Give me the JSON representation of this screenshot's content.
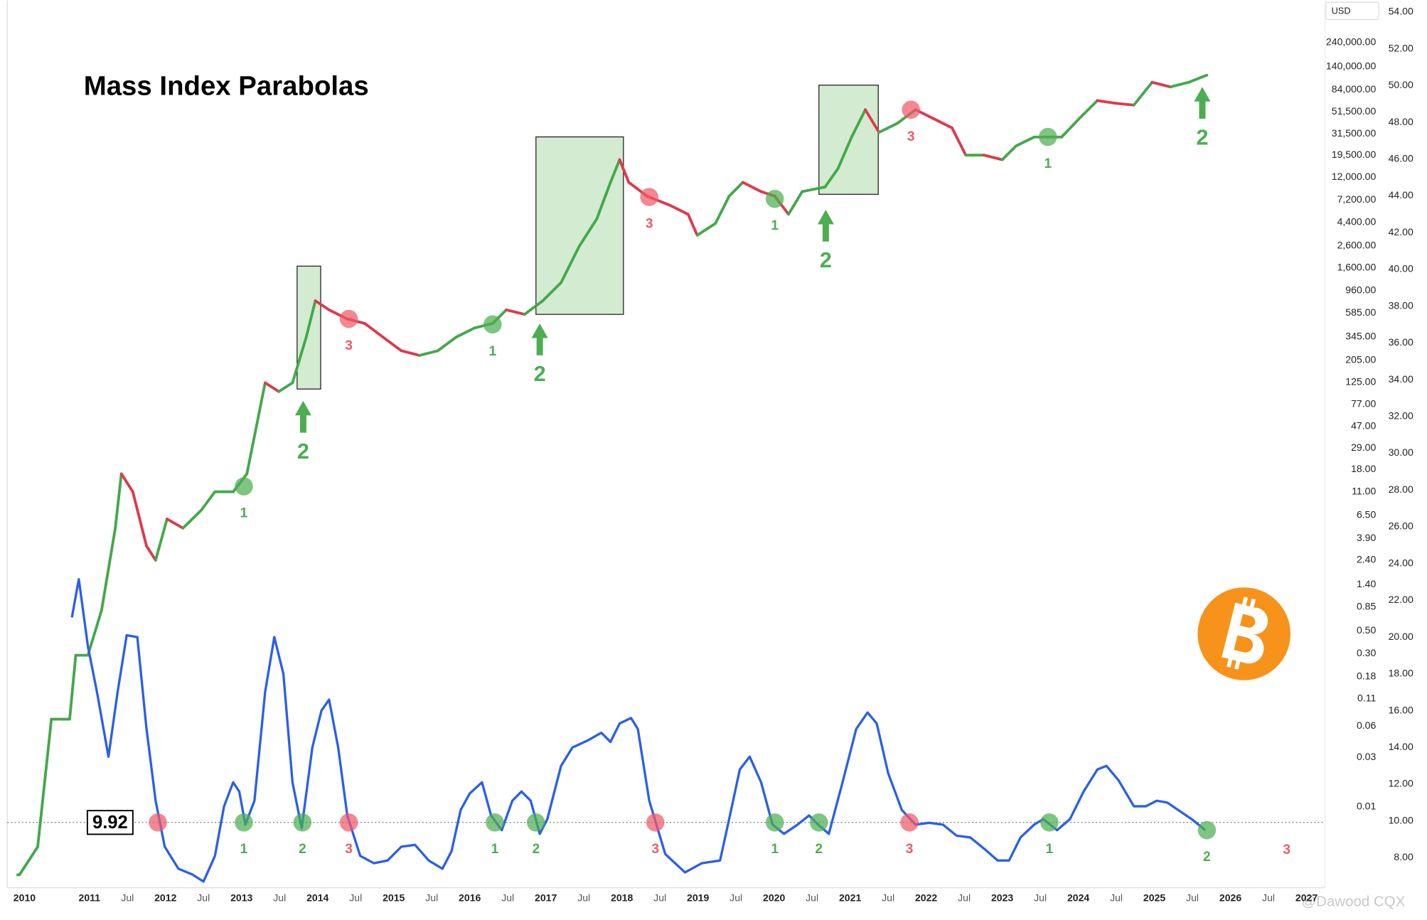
{
  "chart_data": {
    "type": "line",
    "title": "Mass Index Parabolas",
    "y_unit": "USD",
    "watermark": "@Dawood CQX",
    "log_scale": true,
    "xlim": [
      2009.92,
      2027.22
    ],
    "ylim": [
      0.00165,
      611000
    ],
    "y2lim": [
      6.37,
      54.63
    ],
    "xticks": [
      {
        "value": 2010,
        "label": "2010"
      },
      {
        "value": 2011,
        "label": "2011"
      },
      {
        "value": 2011.5,
        "label": "Jul"
      },
      {
        "value": 2012,
        "label": "2012"
      },
      {
        "value": 2012.5,
        "label": "Jul"
      },
      {
        "value": 2013,
        "label": "2013"
      },
      {
        "value": 2013.5,
        "label": "Jul"
      },
      {
        "value": 2014,
        "label": "2014"
      },
      {
        "value": 2014.5,
        "label": "Jul"
      },
      {
        "value": 2015,
        "label": "2015"
      },
      {
        "value": 2015.5,
        "label": "Jul"
      },
      {
        "value": 2016,
        "label": "2016"
      },
      {
        "value": 2016.5,
        "label": "Jul"
      },
      {
        "value": 2017,
        "label": "2017"
      },
      {
        "value": 2017.5,
        "label": "Jul"
      },
      {
        "value": 2018,
        "label": "2018"
      },
      {
        "value": 2018.5,
        "label": "Jul"
      },
      {
        "value": 2019,
        "label": "2019"
      },
      {
        "value": 2019.5,
        "label": "Jul"
      },
      {
        "value": 2020,
        "label": "2020"
      },
      {
        "value": 2020.5,
        "label": "Jul"
      },
      {
        "value": 2021,
        "label": "2021"
      },
      {
        "value": 2021.5,
        "label": "Jul"
      },
      {
        "value": 2022,
        "label": "2022"
      },
      {
        "value": 2022.5,
        "label": "Jul"
      },
      {
        "value": 2023,
        "label": "2023"
      },
      {
        "value": 2023.5,
        "label": "Jul"
      },
      {
        "value": 2024,
        "label": "2024"
      },
      {
        "value": 2024.5,
        "label": "Jul"
      },
      {
        "value": 2025,
        "label": "2025"
      },
      {
        "value": 2025.5,
        "label": "Jul"
      },
      {
        "value": 2026,
        "label": "2026"
      },
      {
        "value": 2026.5,
        "label": "Jul"
      },
      {
        "value": 2027,
        "label": "2027"
      }
    ],
    "yticks": [
      {
        "value": 0.01,
        "label": "0.01"
      },
      {
        "value": 0.03,
        "label": "0.03"
      },
      {
        "value": 0.06,
        "label": "0.06"
      },
      {
        "value": 0.11,
        "label": "0.11"
      },
      {
        "value": 0.18,
        "label": "0.18"
      },
      {
        "value": 0.3,
        "label": "0.30"
      },
      {
        "value": 0.5,
        "label": "0.50"
      },
      {
        "value": 0.85,
        "label": "0.85"
      },
      {
        "value": 1.4,
        "label": "1.40"
      },
      {
        "value": 2.4,
        "label": "2.40"
      },
      {
        "value": 3.9,
        "label": "3.90"
      },
      {
        "value": 6.5,
        "label": "6.50"
      },
      {
        "value": 11,
        "label": "11.00"
      },
      {
        "value": 18,
        "label": "18.00"
      },
      {
        "value": 29,
        "label": "29.00"
      },
      {
        "value": 47,
        "label": "47.00"
      },
      {
        "value": 77,
        "label": "77.00"
      },
      {
        "value": 125,
        "label": "125.00"
      },
      {
        "value": 205,
        "label": "205.00"
      },
      {
        "value": 345,
        "label": "345.00"
      },
      {
        "value": 585,
        "label": "585.00"
      },
      {
        "value": 960,
        "label": "960.00"
      },
      {
        "value": 1600,
        "label": "1,600.00"
      },
      {
        "value": 2600,
        "label": "2,600.00"
      },
      {
        "value": 4400,
        "label": "4,400.00"
      },
      {
        "value": 7200,
        "label": "7,200.00"
      },
      {
        "value": 12000,
        "label": "12,000.00"
      },
      {
        "value": 19500,
        "label": "19,500.00"
      },
      {
        "value": 31500,
        "label": "31,500.00"
      },
      {
        "value": 51500,
        "label": "51,500.00"
      },
      {
        "value": 84000,
        "label": "84,000.00"
      },
      {
        "value": 140000,
        "label": "140,000.00"
      },
      {
        "value": 240000,
        "label": "240,000.00"
      }
    ],
    "y2ticks": [
      {
        "value": 8,
        "label": "8.00"
      },
      {
        "value": 10,
        "label": "10.00"
      },
      {
        "value": 12,
        "label": "12.00"
      },
      {
        "value": 14,
        "label": "14.00"
      },
      {
        "value": 16,
        "label": "16.00"
      },
      {
        "value": 18,
        "label": "18.00"
      },
      {
        "value": 20,
        "label": "20.00"
      },
      {
        "value": 22,
        "label": "22.00"
      },
      {
        "value": 24,
        "label": "24.00"
      },
      {
        "value": 26,
        "label": "26.00"
      },
      {
        "value": 28,
        "label": "28.00"
      },
      {
        "value": 30,
        "label": "30.00"
      },
      {
        "value": 32,
        "label": "32.00"
      },
      {
        "value": 34,
        "label": "34.00"
      },
      {
        "value": 36,
        "label": "36.00"
      },
      {
        "value": 38,
        "label": "38.00"
      },
      {
        "value": 40,
        "label": "40.00"
      },
      {
        "value": 42,
        "label": "42.00"
      },
      {
        "value": 44,
        "label": "44.00"
      },
      {
        "value": 46,
        "label": "46.00"
      },
      {
        "value": 48,
        "label": "48.00"
      },
      {
        "value": 50,
        "label": "50.00"
      },
      {
        "value": 52,
        "label": "52.00"
      },
      {
        "value": 54,
        "label": "54.00"
      }
    ],
    "series": [
      {
        "axis": "y",
        "up_color": "#43a84a",
        "down_color": "#e0384a",
        "x": [
          2010.08,
          2010.32,
          2010.5,
          2010.74,
          2010.82,
          2010.98,
          2011.16,
          2011.34,
          2011.42,
          2011.57,
          2011.75,
          2011.87,
          2012.02,
          2012.23,
          2012.47,
          2012.65,
          2012.89,
          2013.07,
          2013.19,
          2013.31,
          2013.49,
          2013.67,
          2013.85,
          2013.97,
          2014.15,
          2014.39,
          2014.62,
          2014.86,
          2015.1,
          2015.34,
          2015.58,
          2015.82,
          2016.06,
          2016.3,
          2016.48,
          2016.72,
          2016.96,
          2017.2,
          2017.44,
          2017.67,
          2017.85,
          2017.97,
          2018.09,
          2018.33,
          2018.63,
          2018.87,
          2018.99,
          2019.23,
          2019.41,
          2019.59,
          2019.83,
          2020.01,
          2020.19,
          2020.37,
          2020.67,
          2020.84,
          2021.02,
          2021.2,
          2021.38,
          2021.62,
          2021.86,
          2022.1,
          2022.34,
          2022.52,
          2022.76,
          2023.0,
          2023.18,
          2023.42,
          2023.6,
          2023.78,
          2024.01,
          2024.25,
          2024.49,
          2024.73,
          2024.97,
          2025.21,
          2025.45,
          2025.69
        ],
        "values": [
          0.0022,
          0.0041,
          0.07,
          0.07,
          0.29,
          0.29,
          0.79,
          4.9,
          16.4,
          11,
          3.3,
          2.4,
          6.0,
          4.9,
          7.3,
          11,
          11,
          16.4,
          45,
          124,
          102,
          124,
          342,
          769,
          628,
          513,
          464,
          342,
          253,
          228,
          253,
          342,
          419,
          464,
          628,
          568,
          769,
          1150,
          2590,
          4750,
          10700,
          17700,
          10700,
          7870,
          6430,
          5260,
          3300,
          4290,
          7870,
          10700,
          8710,
          7870,
          5260,
          8710,
          9640,
          14500,
          29300,
          53800,
          32500,
          39700,
          53800,
          44000,
          35900,
          19600,
          19600,
          17700,
          24000,
          29300,
          29300,
          29300,
          44000,
          65900,
          62100,
          59600,
          98900,
          89300,
          98900,
          116000
        ]
      },
      {
        "axis": "y2",
        "color": "#2a5fe8",
        "x": [
          2010.77,
          2010.86,
          2010.98,
          2011.1,
          2011.25,
          2011.37,
          2011.49,
          2011.63,
          2011.75,
          2011.87,
          2011.99,
          2012.17,
          2012.35,
          2012.5,
          2012.65,
          2012.77,
          2012.89,
          2012.97,
          2013.05,
          2013.17,
          2013.31,
          2013.43,
          2013.55,
          2013.67,
          2013.79,
          2013.93,
          2014.05,
          2014.15,
          2014.27,
          2014.39,
          2014.56,
          2014.74,
          2014.92,
          2015.1,
          2015.28,
          2015.46,
          2015.64,
          2015.76,
          2015.88,
          2016.0,
          2016.16,
          2016.28,
          2016.42,
          2016.56,
          2016.68,
          2016.8,
          2016.92,
          2017.02,
          2017.2,
          2017.35,
          2017.56,
          2017.73,
          2017.85,
          2017.97,
          2018.12,
          2018.21,
          2018.36,
          2018.57,
          2018.83,
          2019.05,
          2019.29,
          2019.41,
          2019.55,
          2019.68,
          2019.83,
          2019.98,
          2020.13,
          2020.31,
          2020.46,
          2020.58,
          2020.72,
          2020.9,
          2021.08,
          2021.23,
          2021.35,
          2021.5,
          2021.68,
          2021.86,
          2022.04,
          2022.22,
          2022.4,
          2022.58,
          2022.76,
          2022.94,
          2023.09,
          2023.24,
          2023.42,
          2023.54,
          2023.72,
          2023.89,
          2024.07,
          2024.25,
          2024.37,
          2024.53,
          2024.73,
          2024.89,
          2025.03,
          2025.17,
          2025.31,
          2025.49,
          2025.67
        ],
        "values": [
          21.07,
          23.15,
          19.5,
          17.0,
          13.5,
          17.0,
          20.1,
          20.0,
          15.0,
          11.1,
          8.6,
          7.4,
          7.1,
          6.7,
          8.1,
          10.8,
          12.1,
          11.6,
          9.8,
          11.1,
          17.0,
          20.0,
          18.0,
          12.1,
          9.6,
          14.0,
          16.0,
          16.6,
          14.0,
          10.3,
          8.1,
          7.7,
          7.85,
          8.6,
          8.7,
          7.85,
          7.4,
          8.35,
          10.6,
          11.5,
          12.1,
          10.3,
          9.5,
          11.1,
          11.6,
          11.1,
          9.3,
          10.1,
          13.0,
          14.0,
          14.4,
          14.8,
          14.3,
          15.3,
          15.6,
          15.0,
          11.1,
          8.2,
          7.2,
          7.7,
          7.85,
          10.1,
          12.8,
          13.5,
          12.1,
          9.8,
          9.3,
          9.8,
          10.3,
          9.8,
          9.3,
          12.1,
          15.0,
          15.9,
          15.3,
          12.6,
          10.6,
          9.8,
          9.9,
          9.8,
          9.2,
          9.1,
          8.5,
          7.85,
          7.85,
          9.1,
          9.8,
          10.1,
          9.5,
          10.1,
          11.6,
          12.8,
          13.0,
          12.2,
          10.8,
          10.8,
          11.1,
          11.0,
          10.6,
          10.1,
          9.5
        ]
      }
    ],
    "threshold": 9.92,
    "mass_markers": [
      {
        "x": 2011.9,
        "y": 9.92,
        "label": null,
        "color": "#ef5a68"
      },
      {
        "x": 2013.03,
        "y": 9.92,
        "label": "1",
        "color": "#4cae50"
      },
      {
        "x": 2013.8,
        "y": 9.92,
        "label": "2",
        "color": "#4cae50"
      },
      {
        "x": 2014.41,
        "y": 9.92,
        "label": "3",
        "color": "#ef5a68"
      },
      {
        "x": 2016.33,
        "y": 9.92,
        "label": "1",
        "color": "#4cae50"
      },
      {
        "x": 2016.87,
        "y": 9.92,
        "label": "2",
        "color": "#4cae50"
      },
      {
        "x": 2018.44,
        "y": 9.92,
        "label": "3",
        "color": "#ef5a68"
      },
      {
        "x": 2020.01,
        "y": 9.92,
        "label": "1",
        "color": "#4cae50"
      },
      {
        "x": 2020.59,
        "y": 9.92,
        "label": "2",
        "color": "#4cae50"
      },
      {
        "x": 2021.78,
        "y": 9.92,
        "label": "3",
        "color": "#ef5a68"
      },
      {
        "x": 2023.62,
        "y": 9.92,
        "label": "1",
        "color": "#4cae50"
      },
      {
        "x": 2025.69,
        "y": 9.5,
        "label": "2",
        "color": "#4cae50"
      }
    ],
    "annotations": [
      {
        "text": "3",
        "x": 2026.74,
        "y": 8.4,
        "color": "#ef5a68"
      }
    ],
    "price_markers": [
      {
        "x": 2013.03,
        "y": 12.4,
        "label": "1",
        "color": "#4cae50"
      },
      {
        "x": 2014.41,
        "y": 513,
        "label": "3",
        "color": "#ef5a68"
      },
      {
        "x": 2016.3,
        "y": 454,
        "label": "1",
        "color": "#4cae50"
      },
      {
        "x": 2018.36,
        "y": 7720,
        "label": "3",
        "color": "#ef5a68"
      },
      {
        "x": 2020.01,
        "y": 7410,
        "label": "1",
        "color": "#4cae50"
      },
      {
        "x": 2021.8,
        "y": 53800,
        "label": "3",
        "color": "#ef5a68"
      },
      {
        "x": 2023.6,
        "y": 29400,
        "label": "1",
        "color": "#4cae50"
      }
    ],
    "boxes": [
      {
        "x0": 2013.73,
        "x1": 2014.04,
        "y0": 108,
        "y1": 1660,
        "color": "#d3ebd0"
      },
      {
        "x0": 2016.87,
        "x1": 2018.02,
        "y0": 568,
        "y1": 29400,
        "color": "#d3ebd0"
      },
      {
        "x0": 2020.59,
        "x1": 2021.37,
        "y0": 8200,
        "y1": 92900,
        "color": "#d3ebd0"
      }
    ],
    "arrows": [
      {
        "x": 2013.81,
        "y": 83,
        "label": "2",
        "color": "#4cae50"
      },
      {
        "x": 2016.92,
        "y": 464,
        "label": "2",
        "color": "#4cae50"
      },
      {
        "x": 2020.68,
        "y": 5820,
        "label": "2",
        "color": "#4cae50"
      },
      {
        "x": 2025.63,
        "y": 89300,
        "label": "2",
        "color": "#4cae50"
      }
    ]
  }
}
